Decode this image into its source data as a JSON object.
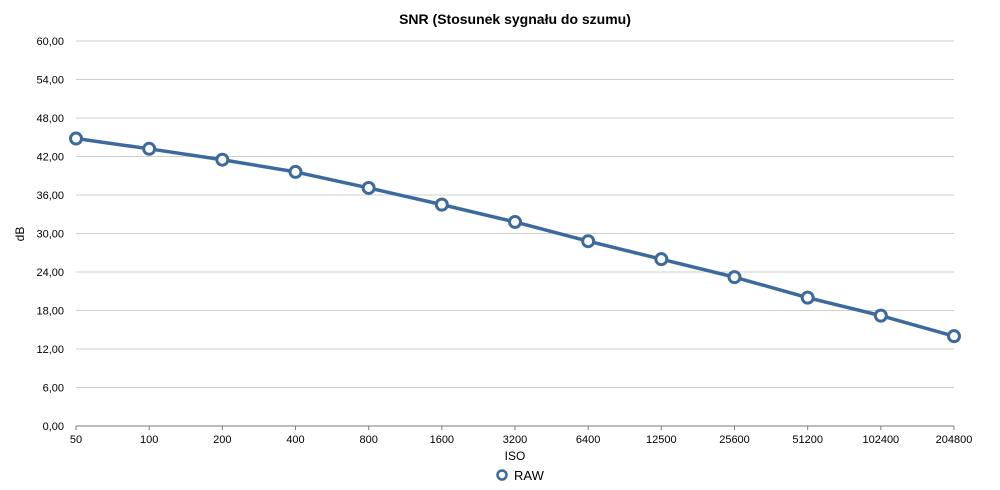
{
  "chart_data": {
    "type": "line",
    "title": "SNR (Stosunek sygnału do szumu)",
    "xlabel": "ISO",
    "ylabel": "dB",
    "categories": [
      "50",
      "100",
      "200",
      "400",
      "800",
      "1600",
      "3200",
      "6400",
      "12500",
      "25600",
      "51200",
      "102400",
      "204800"
    ],
    "ylim": [
      0,
      60
    ],
    "yticks": [
      "0,00",
      "6,00",
      "12,00",
      "18,00",
      "24,00",
      "30,00",
      "36,00",
      "42,00",
      "48,00",
      "54,00",
      "60,00"
    ],
    "grid": true,
    "legend_position": "bottom-center",
    "series": [
      {
        "name": "RAW",
        "color": "#3d6a9c",
        "values": [
          44.8,
          43.2,
          41.5,
          39.6,
          37.1,
          34.5,
          31.8,
          28.8,
          26.0,
          23.2,
          20.0,
          17.2,
          14.0
        ]
      }
    ]
  }
}
